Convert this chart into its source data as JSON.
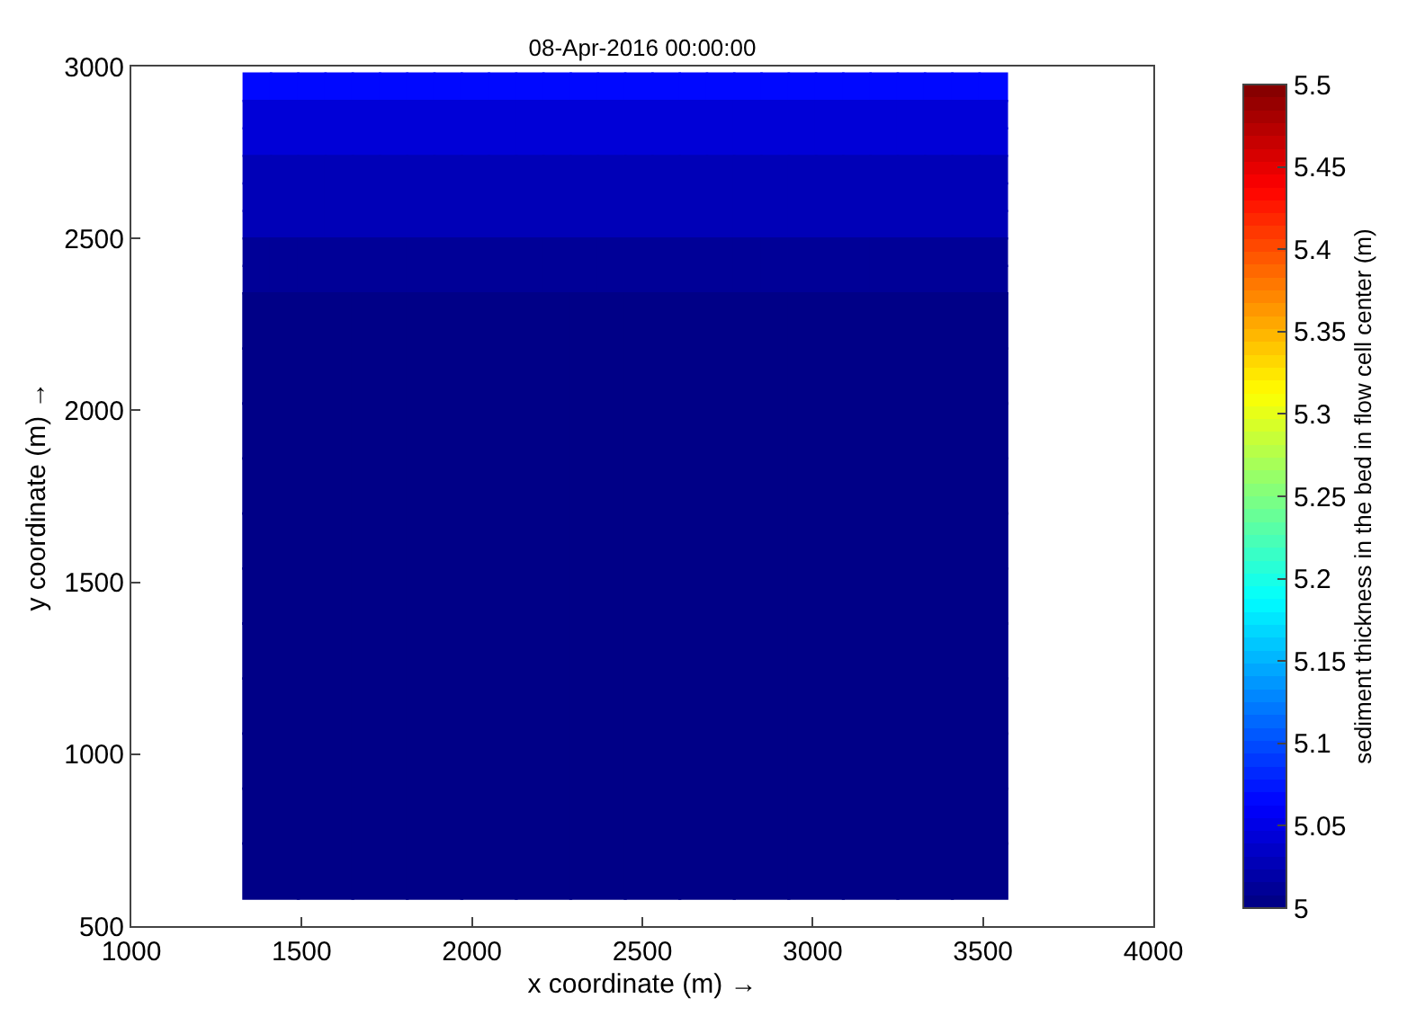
{
  "chart_data": {
    "type": "scatter",
    "marker": "square",
    "title": "08-Apr-2016 00:00:00",
    "xlabel": "x coordinate (m) →",
    "ylabel": "y coordinate (m) →",
    "clabel": "sediment thickness in the bed in flow cell center (m)",
    "series": [
      {
        "x": [
          1370,
          1450,
          1530,
          1610,
          1690,
          1770,
          1850,
          1930,
          2010,
          2090,
          2170,
          2250,
          2330,
          2410,
          2490,
          2570,
          2650,
          2730,
          2810,
          2890,
          2970,
          3050,
          3130,
          3210,
          3290,
          3370,
          3450,
          3530
        ],
        "values": [
          2940,
          2940,
          2940,
          2940,
          2940,
          2940,
          2940,
          2940,
          2940,
          2940,
          2940,
          2940,
          2940,
          2940,
          2940,
          2940,
          2940,
          2940,
          2940,
          2940,
          2940,
          2940,
          2940,
          2940,
          2940,
          2940,
          2940,
          2940
        ],
        "cvalues": [
          5.065,
          5.065,
          5.065,
          5.065,
          5.065,
          5.065,
          5.065,
          5.065,
          5.065,
          5.065,
          5.065,
          5.065,
          5.065,
          5.065,
          5.065,
          5.065,
          5.065,
          5.065,
          5.065,
          5.065,
          5.065,
          5.065,
          5.065,
          5.065,
          5.065,
          5.065,
          5.065,
          5.065
        ]
      },
      {
        "x": [
          1370,
          1450,
          1530,
          1610,
          1690,
          1770,
          1850,
          1930,
          2010,
          2090,
          2170,
          2250,
          2330,
          2410,
          2490,
          2570,
          2650,
          2730,
          2810,
          2890,
          2970,
          3050,
          3130,
          3210,
          3290,
          3370,
          3450,
          3530
        ],
        "values": [
          2860,
          2860,
          2860,
          2860,
          2860,
          2860,
          2860,
          2860,
          2860,
          2860,
          2860,
          2860,
          2860,
          2860,
          2860,
          2860,
          2860,
          2860,
          2860,
          2860,
          2860,
          2860,
          2860,
          2860,
          2860,
          2860,
          2860,
          2860
        ],
        "cvalues": [
          5.045,
          5.045,
          5.045,
          5.045,
          5.045,
          5.045,
          5.045,
          5.045,
          5.045,
          5.045,
          5.045,
          5.045,
          5.045,
          5.045,
          5.045,
          5.045,
          5.045,
          5.045,
          5.045,
          5.045,
          5.045,
          5.045,
          5.045,
          5.045,
          5.045,
          5.045,
          5.045,
          5.045
        ]
      },
      {
        "x": [
          1370,
          1450,
          1530,
          1610,
          1690,
          1770,
          1850,
          1930,
          2010,
          2090,
          2170,
          2250,
          2330,
          2410,
          2490,
          2570,
          2650,
          2730,
          2810,
          2890,
          2970,
          3050,
          3130,
          3210,
          3290,
          3370,
          3450,
          3530
        ],
        "values": [
          2780,
          2780,
          2780,
          2780,
          2780,
          2780,
          2780,
          2780,
          2780,
          2780,
          2780,
          2780,
          2780,
          2780,
          2780,
          2780,
          2780,
          2780,
          2780,
          2780,
          2780,
          2780,
          2780,
          2780,
          2780,
          2780,
          2780,
          2780
        ],
        "cvalues": [
          5.045,
          5.045,
          5.045,
          5.045,
          5.045,
          5.045,
          5.045,
          5.045,
          5.045,
          5.045,
          5.045,
          5.045,
          5.045,
          5.045,
          5.045,
          5.045,
          5.045,
          5.045,
          5.045,
          5.045,
          5.045,
          5.045,
          5.045,
          5.045,
          5.045,
          5.045,
          5.045,
          5.045
        ]
      },
      {
        "x": [
          1370,
          1450,
          1530,
          1610,
          1690,
          1770,
          1850,
          1930,
          2010,
          2090,
          2170,
          2250,
          2330,
          2410,
          2490,
          2570,
          2650,
          2730,
          2810,
          2890,
          2970,
          3050,
          3130,
          3210,
          3290,
          3370,
          3450,
          3530
        ],
        "values": [
          2700,
          2700,
          2700,
          2700,
          2700,
          2700,
          2700,
          2700,
          2700,
          2700,
          2700,
          2700,
          2700,
          2700,
          2700,
          2700,
          2700,
          2700,
          2700,
          2700,
          2700,
          2700,
          2700,
          2700,
          2700,
          2700,
          2700,
          2700
        ],
        "cvalues": [
          5.025,
          5.025,
          5.025,
          5.025,
          5.025,
          5.025,
          5.025,
          5.025,
          5.025,
          5.025,
          5.025,
          5.025,
          5.025,
          5.025,
          5.025,
          5.025,
          5.025,
          5.025,
          5.025,
          5.025,
          5.025,
          5.025,
          5.025,
          5.025,
          5.025,
          5.025,
          5.025,
          5.025
        ]
      },
      {
        "x": [
          1370,
          1450,
          1530,
          1610,
          1690,
          1770,
          1850,
          1930,
          2010,
          2090,
          2170,
          2250,
          2330,
          2410,
          2490,
          2570,
          2650,
          2730,
          2810,
          2890,
          2970,
          3050,
          3130,
          3210,
          3290,
          3370,
          3450,
          3530
        ],
        "values": [
          2620,
          2620,
          2620,
          2620,
          2620,
          2620,
          2620,
          2620,
          2620,
          2620,
          2620,
          2620,
          2620,
          2620,
          2620,
          2620,
          2620,
          2620,
          2620,
          2620,
          2620,
          2620,
          2620,
          2620,
          2620,
          2620,
          2620,
          2620
        ],
        "cvalues": [
          5.025,
          5.025,
          5.025,
          5.025,
          5.025,
          5.025,
          5.025,
          5.025,
          5.025,
          5.025,
          5.025,
          5.025,
          5.025,
          5.025,
          5.025,
          5.025,
          5.025,
          5.025,
          5.025,
          5.025,
          5.025,
          5.025,
          5.025,
          5.025,
          5.025,
          5.025,
          5.025,
          5.025
        ]
      },
      {
        "x": [
          1370,
          1450,
          1530,
          1610,
          1690,
          1770,
          1850,
          1930,
          2010,
          2090,
          2170,
          2250,
          2330,
          2410,
          2490,
          2570,
          2650,
          2730,
          2810,
          2890,
          2970,
          3050,
          3130,
          3210,
          3290,
          3370,
          3450,
          3530
        ],
        "values": [
          2540,
          2540,
          2540,
          2540,
          2540,
          2540,
          2540,
          2540,
          2540,
          2540,
          2540,
          2540,
          2540,
          2540,
          2540,
          2540,
          2540,
          2540,
          2540,
          2540,
          2540,
          2540,
          2540,
          2540,
          2540,
          2540,
          2540,
          2540
        ],
        "cvalues": [
          5.025,
          5.025,
          5.025,
          5.025,
          5.025,
          5.025,
          5.025,
          5.025,
          5.025,
          5.025,
          5.025,
          5.025,
          5.025,
          5.025,
          5.025,
          5.025,
          5.025,
          5.025,
          5.025,
          5.025,
          5.025,
          5.025,
          5.025,
          5.025,
          5.025,
          5.025,
          5.025,
          5.025
        ]
      },
      {
        "x": [
          1370,
          1450,
          1530,
          1610,
          1690,
          1770,
          1850,
          1930,
          2010,
          2090,
          2170,
          2250,
          2330,
          2410,
          2490,
          2570,
          2650,
          2730,
          2810,
          2890,
          2970,
          3050,
          3130,
          3210,
          3290,
          3370,
          3450,
          3530
        ],
        "values": [
          2460,
          2460,
          2460,
          2460,
          2460,
          2460,
          2460,
          2460,
          2460,
          2460,
          2460,
          2460,
          2460,
          2460,
          2460,
          2460,
          2460,
          2460,
          2460,
          2460,
          2460,
          2460,
          2460,
          2460,
          2460,
          2460,
          2460,
          2460
        ],
        "cvalues": [
          5.01,
          5.01,
          5.01,
          5.01,
          5.01,
          5.01,
          5.01,
          5.01,
          5.01,
          5.01,
          5.01,
          5.01,
          5.01,
          5.01,
          5.01,
          5.01,
          5.01,
          5.01,
          5.01,
          5.01,
          5.01,
          5.01,
          5.01,
          5.01,
          5.01,
          5.01,
          5.01,
          5.01
        ]
      },
      {
        "x": [
          1370,
          1450,
          1530,
          1610,
          1690,
          1770,
          1850,
          1930,
          2010,
          2090,
          2170,
          2250,
          2330,
          2410,
          2490,
          2570,
          2650,
          2730,
          2810,
          2890,
          2970,
          3050,
          3130,
          3210,
          3290,
          3370,
          3450,
          3530
        ],
        "values": [
          2380,
          2380,
          2380,
          2380,
          2380,
          2380,
          2380,
          2380,
          2380,
          2380,
          2380,
          2380,
          2380,
          2380,
          2380,
          2380,
          2380,
          2380,
          2380,
          2380,
          2380,
          2380,
          2380,
          2380,
          2380,
          2380,
          2380,
          2380
        ],
        "cvalues": [
          5.01,
          5.01,
          5.01,
          5.01,
          5.01,
          5.01,
          5.01,
          5.01,
          5.01,
          5.01,
          5.01,
          5.01,
          5.01,
          5.01,
          5.01,
          5.01,
          5.01,
          5.01,
          5.01,
          5.01,
          5.01,
          5.01,
          5.01,
          5.01,
          5.01,
          5.01,
          5.01,
          5.01
        ]
      },
      {
        "x": [
          1410,
          1570,
          1730,
          1890,
          2050,
          2210,
          2370,
          2530,
          2690,
          2850,
          3010,
          3170,
          3330,
          3490
        ],
        "values": [
          2260,
          2260,
          2260,
          2260,
          2260,
          2260,
          2260,
          2260,
          2260,
          2260,
          2260,
          2260,
          2260,
          2260
        ],
        "cvalues": [
          5,
          5,
          5,
          5,
          5,
          5,
          5,
          5,
          5,
          5,
          5,
          5,
          5,
          5
        ]
      },
      {
        "x": [
          1410,
          1570,
          1730,
          1890,
          2050,
          2210,
          2370,
          2530,
          2690,
          2850,
          3010,
          3170,
          3330,
          3490
        ],
        "values": [
          2100,
          2100,
          2100,
          2100,
          2100,
          2100,
          2100,
          2100,
          2100,
          2100,
          2100,
          2100,
          2100,
          2100
        ],
        "cvalues": [
          5,
          5,
          5,
          5,
          5,
          5,
          5,
          5,
          5,
          5,
          5,
          5,
          5,
          5
        ]
      },
      {
        "x": [
          1410,
          1570,
          1730,
          1890,
          2050,
          2210,
          2370,
          2530,
          2690,
          2850,
          3010,
          3170,
          3330,
          3490
        ],
        "values": [
          1940,
          1940,
          1940,
          1940,
          1940,
          1940,
          1940,
          1940,
          1940,
          1940,
          1940,
          1940,
          1940,
          1940
        ],
        "cvalues": [
          5,
          5,
          5,
          5,
          5,
          5,
          5,
          5,
          5,
          5,
          5,
          5,
          5,
          5
        ]
      },
      {
        "x": [
          1410,
          1570,
          1730,
          1890,
          2050,
          2210,
          2370,
          2530,
          2690,
          2850,
          3010,
          3170,
          3330,
          3490
        ],
        "values": [
          1780,
          1780,
          1780,
          1780,
          1780,
          1780,
          1780,
          1780,
          1780,
          1780,
          1780,
          1780,
          1780,
          1780
        ],
        "cvalues": [
          5,
          5,
          5,
          5,
          5,
          5,
          5,
          5,
          5,
          5,
          5,
          5,
          5,
          5
        ]
      },
      {
        "x": [
          1410,
          1570,
          1730,
          1890,
          2050,
          2210,
          2370,
          2530,
          2690,
          2850,
          3010,
          3170,
          3330,
          3490
        ],
        "values": [
          1620,
          1620,
          1620,
          1620,
          1620,
          1620,
          1620,
          1620,
          1620,
          1620,
          1620,
          1620,
          1620,
          1620
        ],
        "cvalues": [
          5,
          5,
          5,
          5,
          5,
          5,
          5,
          5,
          5,
          5,
          5,
          5,
          5,
          5
        ]
      },
      {
        "x": [
          1410,
          1570,
          1730,
          1890,
          2050,
          2210,
          2370,
          2530,
          2690,
          2850,
          3010,
          3170,
          3330,
          3490
        ],
        "values": [
          1460,
          1460,
          1460,
          1460,
          1460,
          1460,
          1460,
          1460,
          1460,
          1460,
          1460,
          1460,
          1460,
          1460
        ],
        "cvalues": [
          5,
          5,
          5,
          5,
          5,
          5,
          5,
          5,
          5,
          5,
          5,
          5,
          5,
          5
        ]
      },
      {
        "x": [
          1410,
          1570,
          1730,
          1890,
          2050,
          2210,
          2370,
          2530,
          2690,
          2850,
          3010,
          3170,
          3330,
          3490
        ],
        "values": [
          1300,
          1300,
          1300,
          1300,
          1300,
          1300,
          1300,
          1300,
          1300,
          1300,
          1300,
          1300,
          1300,
          1300
        ],
        "cvalues": [
          5,
          5,
          5,
          5,
          5,
          5,
          5,
          5,
          5,
          5,
          5,
          5,
          5,
          5
        ]
      },
      {
        "x": [
          1410,
          1570,
          1730,
          1890,
          2050,
          2210,
          2370,
          2530,
          2690,
          2850,
          3010,
          3170,
          3330,
          3490
        ],
        "values": [
          1140,
          1140,
          1140,
          1140,
          1140,
          1140,
          1140,
          1140,
          1140,
          1140,
          1140,
          1140,
          1140,
          1140
        ],
        "cvalues": [
          5,
          5,
          5,
          5,
          5,
          5,
          5,
          5,
          5,
          5,
          5,
          5,
          5,
          5
        ]
      },
      {
        "x": [
          1410,
          1570,
          1730,
          1890,
          2050,
          2210,
          2370,
          2530,
          2690,
          2850,
          3010,
          3170,
          3330,
          3490
        ],
        "values": [
          980,
          980,
          980,
          980,
          980,
          980,
          980,
          980,
          980,
          980,
          980,
          980,
          980,
          980
        ],
        "cvalues": [
          5,
          5,
          5,
          5,
          5,
          5,
          5,
          5,
          5,
          5,
          5,
          5,
          5,
          5
        ]
      },
      {
        "x": [
          1410,
          1570,
          1730,
          1890,
          2050,
          2210,
          2370,
          2530,
          2690,
          2850,
          3010,
          3170,
          3330,
          3490
        ],
        "values": [
          820,
          820,
          820,
          820,
          820,
          820,
          820,
          820,
          820,
          820,
          820,
          820,
          820,
          820
        ],
        "cvalues": [
          5,
          5,
          5,
          5,
          5,
          5,
          5,
          5,
          5,
          5,
          5,
          5,
          5,
          5
        ]
      },
      {
        "x": [
          1410,
          1570,
          1730,
          1890,
          2050,
          2210,
          2370,
          2530,
          2690,
          2850,
          3010,
          3170,
          3330,
          3490
        ],
        "values": [
          660,
          660,
          660,
          660,
          660,
          660,
          660,
          660,
          660,
          660,
          660,
          660,
          660,
          660
        ],
        "cvalues": [
          5,
          5,
          5,
          5,
          5,
          5,
          5,
          5,
          5,
          5,
          5,
          5,
          5,
          5
        ]
      }
    ],
    "clim": [
      5,
      5.5
    ],
    "cticks": [
      5,
      5.05,
      5.1,
      5.15,
      5.2,
      5.25,
      5.3,
      5.35,
      5.4,
      5.45,
      5.5
    ],
    "xlim": [
      1000,
      4000
    ],
    "xticks": [
      1000,
      1500,
      2000,
      2500,
      3000,
      3500,
      4000
    ],
    "ylim": [
      500,
      3000
    ],
    "yticks": [
      500,
      1000,
      1500,
      2000,
      2500,
      3000
    ]
  }
}
